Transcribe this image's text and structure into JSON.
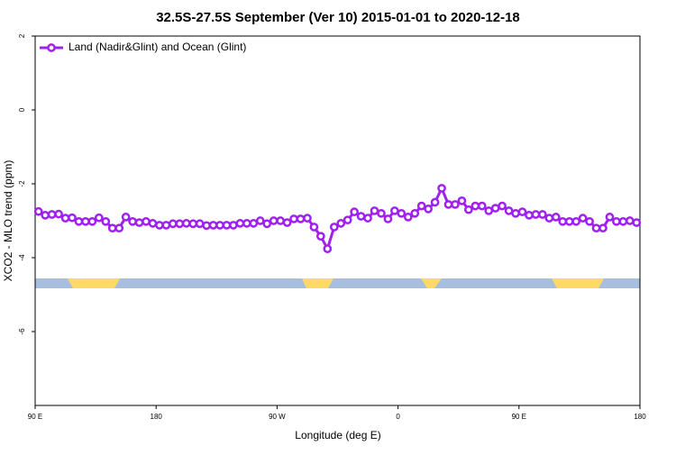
{
  "chart_data": {
    "type": "line",
    "title": "32.5S-27.5S September (Ver 10)   2015-01-01 to 2020-12-18",
    "x_label": "Longitude (deg E)",
    "y_label": "XCO2 - MLO trend (ppm)",
    "x": [
      92.5,
      97.5,
      102.5,
      107.5,
      112.5,
      117.5,
      122.5,
      127.5,
      132.5,
      137.5,
      142.5,
      147.5,
      152.5,
      157.5,
      162.5,
      167.5,
      172.5,
      177.5,
      182.5,
      187.5,
      192.5,
      197.5,
      202.5,
      207.5,
      212.5,
      217.5,
      222.5,
      227.5,
      232.5,
      237.5,
      242.5,
      247.5,
      252.5,
      257.5,
      262.5,
      267.5,
      272.5,
      277.5,
      282.5,
      287.5,
      292.5,
      297.5,
      302.5,
      307.5,
      312.5,
      317.5,
      322.5,
      327.5,
      332.5,
      337.5,
      342.5,
      347.5,
      352.5,
      357.5,
      362.5,
      367.5,
      372.5,
      377.5,
      382.5,
      387.5,
      392.5,
      397.5,
      402.5,
      407.5,
      412.5,
      417.5,
      422.5,
      427.5,
      432.5,
      437.5,
      442.5,
      447.5,
      452.5,
      457.5,
      462.5,
      467.5,
      472.5,
      477.5,
      482.5,
      487.5,
      492.5,
      497.5,
      502.5,
      507.5,
      512.5,
      517.5,
      522.5,
      527.5,
      532.5,
      537.5
    ],
    "series": [
      {
        "name": "Land (Nadir&Glint) and Ocean (Glint)",
        "color": "#a020f0",
        "values": [
          -2.75,
          -2.85,
          -2.83,
          -2.82,
          -2.93,
          -2.92,
          -3.02,
          -3.02,
          -3.02,
          -2.92,
          -3.02,
          -3.2,
          -3.2,
          -2.9,
          -3.02,
          -3.05,
          -3.02,
          -3.07,
          -3.12,
          -3.12,
          -3.08,
          -3.08,
          -3.07,
          -3.08,
          -3.08,
          -3.13,
          -3.12,
          -3.12,
          -3.12,
          -3.12,
          -3.07,
          -3.07,
          -3.07,
          -3.0,
          -3.08,
          -3.0,
          -3.0,
          -3.05,
          -2.95,
          -2.95,
          -2.93,
          -3.17,
          -3.42,
          -3.76,
          -3.17,
          -3.07,
          -2.98,
          -2.76,
          -2.88,
          -2.93,
          -2.73,
          -2.8,
          -2.95,
          -2.73,
          -2.8,
          -2.9,
          -2.8,
          -2.6,
          -2.68,
          -2.5,
          -2.12,
          -2.56,
          -2.56,
          -2.46,
          -2.7,
          -2.6,
          -2.6,
          -2.73,
          -2.66,
          -2.6,
          -2.73,
          -2.8,
          -2.76,
          -2.85,
          -2.83,
          -2.83,
          -2.93,
          -2.9,
          -3.02,
          -3.02,
          -3.02,
          -2.93,
          -3.02,
          -3.2,
          -3.2,
          -2.9,
          -3.02,
          -3.02,
          -3.0,
          -3.05
        ]
      }
    ],
    "xlim": [
      90,
      540
    ],
    "xticks": [
      {
        "value": 90,
        "label": "90 E"
      },
      180,
      {
        "value": 270,
        "label": "90 W"
      },
      {
        "value": 360,
        "label": "0"
      },
      {
        "value": 450,
        "label": "90 E"
      },
      {
        "value": 540,
        "label": "180"
      }
    ],
    "ylim": [
      -8,
      2
    ],
    "yticks": [
      -6,
      -4,
      -2,
      0,
      2
    ],
    "legend": "top-left"
  }
}
